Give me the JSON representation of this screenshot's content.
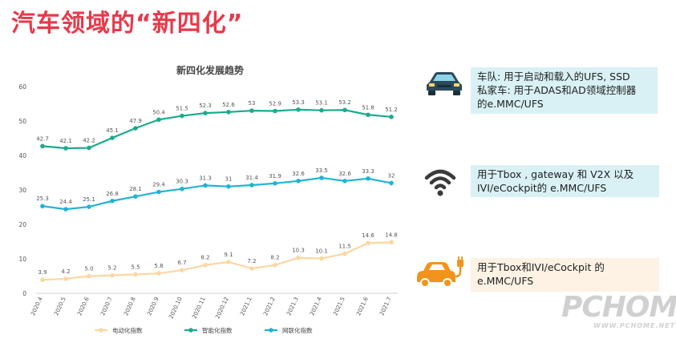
{
  "page": {
    "title": "汽车领域的“新四化”",
    "watermark_big": "PCHOME",
    "watermark_small": "WWW.PCHOME.NET"
  },
  "colors": {
    "title": "#e8394a",
    "electrification": "#fcd7a2",
    "intelligent": "#1aab8f",
    "connected": "#1fb3d7",
    "car_icon": "#2b4a5c",
    "ev_icon": "#f0941e"
  },
  "info": [
    {
      "icon": "car-icon",
      "lines": [
        "车队: 用于启动和载入的UFS, SSD",
        "私家车: 用于ADAS和AD领域控制器",
        "的e.MMC/UFS"
      ]
    },
    {
      "icon": "wifi-icon",
      "lines": [
        "用于Tbox , gateway 和 V2X 以及",
        "IVI/eCockpit的 e.MMC/UFS"
      ]
    },
    {
      "icon": "ev-charging-icon",
      "lines": [
        "用于Tbox和IVI/eCockpit 的",
        "e.MMC/UFS"
      ]
    }
  ],
  "chart_data": {
    "type": "line",
    "title": "新四化发展趋势",
    "categories": [
      "2020.4",
      "2020.5",
      "2020.6",
      "2020.7",
      "2020.8",
      "2020.9",
      "2020.10",
      "2020.11",
      "2020.12",
      "2021.1",
      "2021.2",
      "2021.3",
      "2021.4",
      "2021.5",
      "2021.6",
      "2021.7"
    ],
    "yticks": [
      0,
      10,
      20,
      30,
      40,
      50,
      60
    ],
    "ylim": [
      0,
      60
    ],
    "legend_position": "bottom",
    "series": [
      {
        "name": "电动化指数",
        "color": "#fcd7a2",
        "values": [
          3.9,
          4.2,
          5.0,
          5.2,
          5.5,
          5.8,
          6.7,
          8.2,
          9.1,
          7.2,
          8.2,
          10.3,
          10.1,
          11.5,
          14.6,
          14.8
        ],
        "labels": [
          "3.9",
          "4.2",
          "5.0",
          "5.2",
          "5.5",
          "5.8",
          "6.7",
          "8.2",
          "9.1",
          "7.2",
          "8.2",
          "10.3",
          "10.1",
          "11.5",
          "14.6",
          "14.8"
        ]
      },
      {
        "name": "智能化指数",
        "color": "#1aab8f",
        "values": [
          42.7,
          42.1,
          42.2,
          45.1,
          47.9,
          50.4,
          51.5,
          52.3,
          52.6,
          53,
          52.9,
          53.3,
          53.1,
          53.2,
          51.8,
          51.2
        ],
        "labels": [
          "42.7",
          "42.1",
          "42.2",
          "45.1",
          "47.9",
          "50.4",
          "51.5",
          "52.3",
          "52.6",
          "53",
          "52.9",
          "53.3",
          "53.1",
          "53.2",
          "51.8",
          "51.2"
        ]
      },
      {
        "name": "网联化指数",
        "color": "#1fb3d7",
        "values": [
          25.3,
          24.4,
          25.1,
          26.8,
          28.1,
          29.4,
          30.3,
          31.3,
          31,
          31.4,
          31.9,
          32.6,
          33.5,
          32.6,
          33.3,
          32
        ],
        "labels": [
          "25.3",
          "24.4",
          "25.1",
          "26.8",
          "28.1",
          "29.4",
          "30.3",
          "31.3",
          "31",
          "31.4",
          "31.9",
          "32.6",
          "33.5",
          "32.6",
          "33.3",
          "32"
        ]
      }
    ]
  }
}
